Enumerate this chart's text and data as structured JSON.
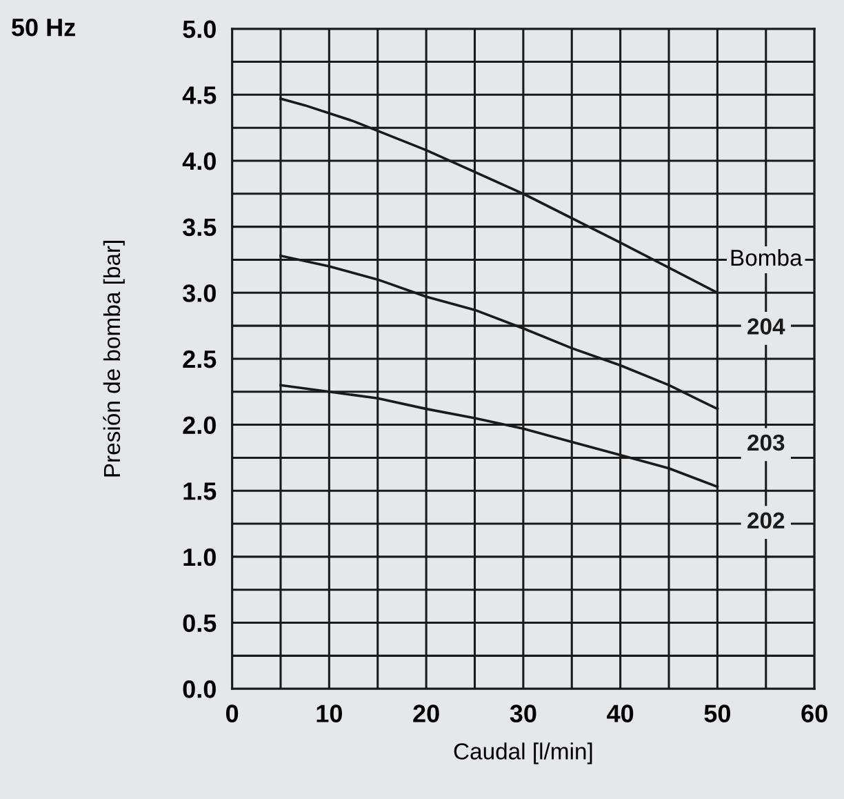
{
  "chart_data": {
    "type": "line",
    "xlabel": "Caudal [l/min]",
    "ylabel": "Presión de bomba [bar]",
    "legend_title": "Bomba",
    "annotations": [
      "50 Hz"
    ],
    "xlim": [
      0,
      60
    ],
    "xticks": [
      0,
      10,
      20,
      30,
      40,
      50,
      60
    ],
    "ylim": [
      0,
      5
    ],
    "yticks": [
      {
        "value": 0,
        "label": "0.0"
      },
      0.5,
      {
        "value": 1,
        "label": "1.0"
      },
      1.5,
      {
        "value": 2,
        "label": "2.0"
      },
      2.5,
      {
        "value": 3,
        "label": "3.0"
      },
      3.5,
      {
        "value": 4,
        "label": "4.0"
      },
      4.5,
      {
        "value": 5,
        "label": "5.0"
      }
    ],
    "grid": true,
    "marker": "none",
    "line_style": "solid",
    "series": [
      {
        "name": "204",
        "color": "#1a1a1a",
        "x": [
          5,
          7.5,
          12.5,
          20,
          30,
          40,
          50
        ],
        "values": [
          4.47,
          4.42,
          4.3,
          4.08,
          3.75,
          3.38,
          3.0
        ]
      },
      {
        "name": "203",
        "color": "#1a1a1a",
        "x": [
          5,
          10,
          15,
          20,
          25,
          30,
          35,
          40,
          45,
          50
        ],
        "values": [
          3.28,
          3.2,
          3.1,
          2.97,
          2.87,
          2.73,
          2.58,
          2.45,
          2.3,
          2.12
        ]
      },
      {
        "name": "202",
        "color": "#1a1a1a",
        "x": [
          5,
          10,
          15,
          20,
          25,
          30,
          35,
          40,
          45,
          50
        ],
        "values": [
          2.3,
          2.25,
          2.2,
          2.12,
          2.05,
          1.97,
          1.87,
          1.77,
          1.67,
          1.53
        ]
      }
    ]
  }
}
